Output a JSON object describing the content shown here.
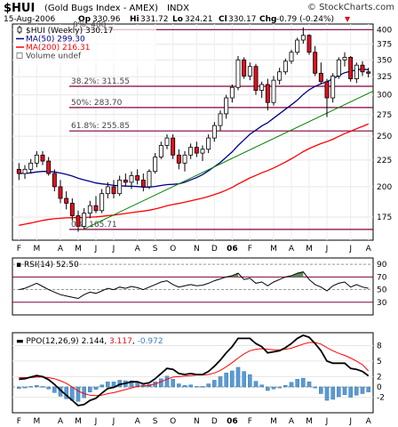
{
  "header": {
    "ticker": "$HUI",
    "name": "(Gold Bugs Index - AMEX)",
    "exchange": "INDX",
    "copyright": "© StockCharts.com",
    "date": "15-Aug-2006",
    "op_label": "Op",
    "op": "330.96",
    "hi_label": "Hi",
    "hi": "331.72",
    "lo_label": "Lo",
    "lo": "324.21",
    "cl_label": "Cl",
    "cl": "330.17",
    "chg_label": "Chg",
    "chg": "-0.79 (-0.24%)",
    "chg_arrow": "▼"
  },
  "legend": [
    {
      "label": "$HUI (Weekly) 330.17",
      "color": "#000000",
      "marker": "candle"
    },
    {
      "label": "MA(50) 299.30",
      "color": "#00008b",
      "marker": "line"
    },
    {
      "label": "MA(200) 216.31",
      "color": "#ff0000",
      "marker": "line"
    },
    {
      "label": "Volume undef",
      "color": "#888888",
      "marker": "box"
    }
  ],
  "colors": {
    "up": "#ffffff",
    "down": "#e0101e",
    "wick": "#000000",
    "ma50": "#00008b",
    "ma200": "#ff0000",
    "trend": "#008000",
    "fib": "#800040",
    "rsi_line": "#000000",
    "rsi_fill": "#5a8a5a",
    "ppo_line": "#000000",
    "ppo_signal": "#ff0000",
    "ppo_hist": "#5a9bd4"
  },
  "chart_data": {
    "type": "candlestick",
    "interval": "weekly",
    "y_scale": "log",
    "price_range": [
      158,
      410
    ],
    "y_ticks": [
      175,
      200,
      225,
      250,
      275,
      300,
      325,
      350,
      375,
      400
    ],
    "x_months": [
      "F",
      "M",
      "A",
      "M",
      "J",
      "J",
      "A",
      "S",
      "O",
      "N",
      "D",
      "06",
      "F",
      "M",
      "A",
      "M",
      "J",
      "J",
      "A"
    ],
    "candles": [
      [
        216,
        222,
        206,
        212
      ],
      [
        212,
        220,
        207,
        216
      ],
      [
        216,
        226,
        212,
        222
      ],
      [
        222,
        234,
        218,
        230
      ],
      [
        230,
        234,
        220,
        224
      ],
      [
        224,
        228,
        210,
        212
      ],
      [
        212,
        216,
        196,
        200
      ],
      [
        200,
        206,
        186,
        190
      ],
      [
        190,
        196,
        181,
        186
      ],
      [
        186,
        190,
        172,
        176
      ],
      [
        176,
        180,
        164,
        168
      ],
      [
        168,
        182,
        166,
        178
      ],
      [
        178,
        188,
        174,
        184
      ],
      [
        184,
        192,
        178,
        180
      ],
      [
        180,
        198,
        178,
        194
      ],
      [
        194,
        204,
        190,
        200
      ],
      [
        200,
        206,
        190,
        194
      ],
      [
        194,
        210,
        192,
        206
      ],
      [
        206,
        212,
        200,
        204
      ],
      [
        204,
        214,
        198,
        210
      ],
      [
        210,
        216,
        202,
        206
      ],
      [
        206,
        212,
        196,
        200
      ],
      [
        200,
        216,
        198,
        214
      ],
      [
        214,
        232,
        212,
        228
      ],
      [
        228,
        244,
        226,
        240
      ],
      [
        240,
        252,
        236,
        248
      ],
      [
        248,
        252,
        226,
        230
      ],
      [
        230,
        236,
        216,
        222
      ],
      [
        222,
        234,
        214,
        230
      ],
      [
        230,
        242,
        226,
        238
      ],
      [
        238,
        244,
        228,
        232
      ],
      [
        232,
        240,
        224,
        236
      ],
      [
        236,
        252,
        232,
        248
      ],
      [
        248,
        266,
        244,
        262
      ],
      [
        262,
        280,
        256,
        276
      ],
      [
        276,
        300,
        270,
        296
      ],
      [
        296,
        314,
        290,
        310
      ],
      [
        310,
        356,
        306,
        350
      ],
      [
        350,
        354,
        322,
        326
      ],
      [
        326,
        346,
        320,
        340
      ],
      [
        340,
        344,
        300,
        306
      ],
      [
        306,
        318,
        296,
        314
      ],
      [
        314,
        322,
        280,
        290
      ],
      [
        290,
        326,
        286,
        320
      ],
      [
        320,
        338,
        314,
        332
      ],
      [
        332,
        352,
        328,
        348
      ],
      [
        348,
        366,
        344,
        362
      ],
      [
        362,
        386,
        358,
        382
      ],
      [
        382,
        404,
        376,
        390
      ],
      [
        390,
        392,
        358,
        362
      ],
      [
        362,
        372,
        326,
        330
      ],
      [
        330,
        346,
        314,
        318
      ],
      [
        318,
        322,
        272,
        296
      ],
      [
        296,
        330,
        290,
        326
      ],
      [
        326,
        354,
        322,
        350
      ],
      [
        350,
        362,
        340,
        354
      ],
      [
        354,
        356,
        318,
        322
      ],
      [
        322,
        346,
        316,
        342
      ],
      [
        342,
        348,
        326,
        332
      ],
      [
        332,
        338,
        324,
        330
      ]
    ],
    "ma50_label": "MA(50) 299.30",
    "ma200_label": "MA(200) 216.31",
    "fib_levels": [
      {
        "label": "38.2%: 311.55",
        "value": 311.55
      },
      {
        "label": "50%: 283.70",
        "value": 283.7
      },
      {
        "label": "61.8%: 255.85",
        "value": 255.85
      },
      {
        "label": "0%: 165.71",
        "value": 165.71
      },
      {
        "label": "0%: 400",
        "value": 400
      }
    ],
    "rsi": {
      "label": "RSI(14)",
      "value_label": "52.50",
      "y_ticks": [
        30,
        50,
        70,
        90
      ],
      "overbought": 70,
      "oversold": 30,
      "values": [
        50,
        52,
        56,
        60,
        55,
        50,
        46,
        42,
        40,
        38,
        36,
        42,
        46,
        44,
        48,
        52,
        50,
        54,
        52,
        55,
        53,
        50,
        54,
        58,
        62,
        64,
        58,
        54,
        56,
        58,
        56,
        57,
        60,
        64,
        67,
        70,
        72,
        76,
        66,
        68,
        60,
        62,
        56,
        62,
        66,
        70,
        72,
        76,
        78,
        66,
        58,
        54,
        48,
        56,
        60,
        62,
        54,
        58,
        54,
        52
      ]
    },
    "ppo": {
      "label": "PPO(12,26,9)",
      "ppo_value": "2.144",
      "signal_value": "3.117",
      "hist_value": "-0.972",
      "y_ticks": [
        -2,
        0,
        2,
        5,
        8
      ],
      "y_range": [
        -5,
        10.5
      ],
      "ppo": [
        1.5,
        1.6,
        1.9,
        2.2,
        2.0,
        1.4,
        0.5,
        -0.6,
        -1.6,
        -2.6,
        -3.6,
        -3.4,
        -2.6,
        -2.2,
        -1.2,
        -0.3,
        -0.1,
        0.5,
        0.7,
        1.0,
        1.0,
        0.6,
        0.8,
        1.6,
        2.6,
        3.6,
        3.4,
        2.6,
        2.4,
        2.6,
        2.4,
        2.4,
        3.0,
        4.0,
        5.2,
        6.6,
        7.8,
        9.4,
        9.4,
        9.4,
        8.4,
        7.8,
        6.6,
        6.8,
        7.0,
        7.6,
        8.4,
        9.4,
        10.0,
        9.6,
        8.4,
        7.0,
        5.0,
        4.6,
        4.6,
        4.6,
        3.6,
        3.4,
        3.0,
        2.144
      ],
      "signal": [
        1.8,
        1.8,
        1.8,
        1.9,
        1.9,
        1.8,
        1.6,
        1.2,
        0.7,
        0.0,
        -0.8,
        -1.3,
        -1.6,
        -1.7,
        -1.6,
        -1.3,
        -1.1,
        -0.8,
        -0.5,
        -0.2,
        0.1,
        0.2,
        0.3,
        0.6,
        1.0,
        1.5,
        1.9,
        2.0,
        2.1,
        2.2,
        2.3,
        2.3,
        2.4,
        2.7,
        3.2,
        3.9,
        4.7,
        5.6,
        6.4,
        7.0,
        7.3,
        7.4,
        7.3,
        7.2,
        7.2,
        7.3,
        7.5,
        7.9,
        8.3,
        8.6,
        8.6,
        8.3,
        7.6,
        7.0,
        6.5,
        6.1,
        5.6,
        5.0,
        4.3,
        3.117
      ]
    }
  }
}
